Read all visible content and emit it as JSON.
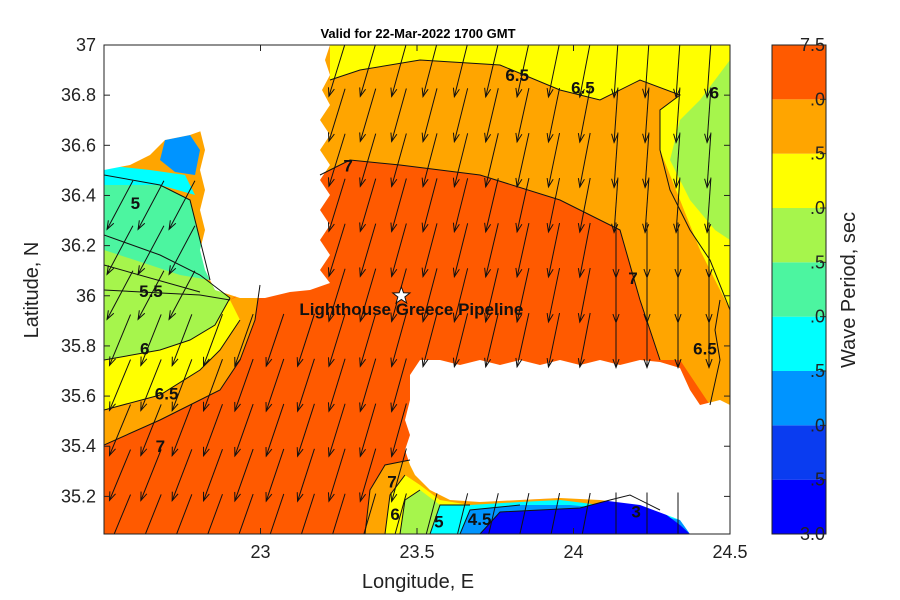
{
  "chart_data": {
    "type": "heatmap",
    "title": "Valid for 22-Mar-2022 1700 GMT",
    "xlabel": "Longitude, E",
    "ylabel": "Latitude, N",
    "xlim": [
      22.5,
      24.5
    ],
    "ylim": [
      35.05,
      37.0
    ],
    "x_ticks": [
      "23",
      "23.5",
      "24",
      "24.5"
    ],
    "x_tick_values": [
      23.0,
      23.5,
      24.0,
      24.5
    ],
    "y_ticks": [
      "37",
      "36.8",
      "36.6",
      "36.4",
      "36.2",
      "36",
      "35.8",
      "35.6",
      "35.4",
      "35.2"
    ],
    "y_tick_values": [
      37.0,
      36.8,
      36.6,
      36.4,
      36.2,
      36.0,
      35.8,
      35.6,
      35.4,
      35.2
    ],
    "colorbar": {
      "label": "Wave Period, sec",
      "range": [
        3.0,
        7.5
      ],
      "ticks": [
        "3.0",
        ".5",
        ".0",
        ".5",
        ".0",
        ".5",
        ".0",
        ".5",
        ".0",
        "7.5"
      ],
      "tick_values": [
        3.0,
        3.5,
        4.0,
        4.5,
        5.0,
        5.5,
        6.0,
        6.5,
        7.0,
        7.5
      ],
      "colors": [
        "#0000ff",
        "#0a3cf0",
        "#0094ff",
        "#00ffff",
        "#4cf5a0",
        "#a6f54c",
        "#ffff00",
        "#ffa500",
        "#ff5a00"
      ]
    },
    "contour_levels": [
      3,
      4.5,
      5,
      5.5,
      6,
      6.5,
      7
    ],
    "contour_labels": [
      {
        "text": "6.5",
        "lon": 23.82,
        "lat": 36.88
      },
      {
        "text": "6.5",
        "lon": 24.03,
        "lat": 36.83
      },
      {
        "text": "6",
        "lon": 24.45,
        "lat": 36.81
      },
      {
        "text": "7",
        "lon": 23.28,
        "lat": 36.52
      },
      {
        "text": "5",
        "lon": 22.6,
        "lat": 36.37
      },
      {
        "text": "5.5",
        "lon": 22.65,
        "lat": 36.02
      },
      {
        "text": "6",
        "lon": 22.63,
        "lat": 35.79
      },
      {
        "text": "6.5",
        "lon": 22.7,
        "lat": 35.61
      },
      {
        "text": "7",
        "lon": 22.68,
        "lat": 35.4
      },
      {
        "text": "7",
        "lon": 24.19,
        "lat": 36.07
      },
      {
        "text": "6.5",
        "lon": 24.42,
        "lat": 35.79
      },
      {
        "text": "7",
        "lon": 23.42,
        "lat": 35.26
      },
      {
        "text": "6",
        "lon": 23.43,
        "lat": 35.13
      },
      {
        "text": "5",
        "lon": 23.57,
        "lat": 35.1
      },
      {
        "text": "4.5",
        "lon": 23.7,
        "lat": 35.11
      },
      {
        "text": "3",
        "lon": 24.2,
        "lat": 35.14
      }
    ],
    "annotation": {
      "text": "Lighthouse Greece Pipeline",
      "lon": 23.45,
      "lat": 36.0
    },
    "grid": false,
    "legend": "colorbar-right"
  },
  "colors": {
    "land": "#ffffff",
    "p3": "#0000ff",
    "p4": "#0a3cf0",
    "p45": "#0094ff",
    "p5": "#00ffff",
    "p55": "#4cf5a0",
    "p6": "#a6f54c",
    "p65": "#ffff00",
    "p7": "#ffa500",
    "p75": "#ff5a00"
  }
}
